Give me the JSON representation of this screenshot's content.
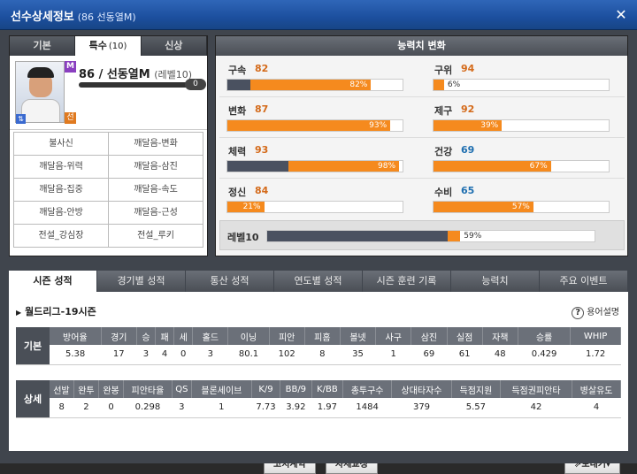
{
  "window": {
    "title": "선수상세정보",
    "subtitle": "(86 선동열M)",
    "close": "✕"
  },
  "left_tabs": [
    {
      "label": "기본",
      "count": ""
    },
    {
      "label": "특수",
      "count": "(10)"
    },
    {
      "label": "신상",
      "count": ""
    }
  ],
  "player": {
    "name": "86 / 선동열M",
    "level": "(레벨10)",
    "exp": "0",
    "badge_top": "M",
    "badge_bottom": "선",
    "photo_alt": ""
  },
  "skills": [
    "불사신",
    "깨달음-변화",
    "깨달음-위력",
    "깨달음-삼진",
    "깨달음-집중",
    "깨달음-속도",
    "깨달음-안방",
    "깨달음-근성",
    "전설_강심장",
    "전설_루키"
  ],
  "stats_header": "능력치 변화",
  "stats": [
    {
      "label": "구속",
      "value": "82",
      "pct": "82%",
      "base": 0.13,
      "fill": 0.82,
      "color": "#d46a1a"
    },
    {
      "label": "구위",
      "value": "94",
      "pct": "6%",
      "base": 0.0,
      "fill": 0.06,
      "color": "#d46a1a"
    },
    {
      "label": "변화",
      "value": "87",
      "pct": "93%",
      "base": 0.0,
      "fill": 0.93,
      "color": "#d46a1a"
    },
    {
      "label": "제구",
      "value": "92",
      "pct": "39%",
      "base": 0.0,
      "fill": 0.39,
      "color": "#d46a1a"
    },
    {
      "label": "체력",
      "value": "93",
      "pct": "98%",
      "base": 0.35,
      "fill": 0.98,
      "color": "#d46a1a"
    },
    {
      "label": "건강",
      "value": "69",
      "pct": "67%",
      "base": 0.0,
      "fill": 0.67,
      "color": "#1f6fb0"
    },
    {
      "label": "정신",
      "value": "84",
      "pct": "21%",
      "base": 0.0,
      "fill": 0.21,
      "color": "#d46a1a"
    },
    {
      "label": "수비",
      "value": "65",
      "pct": "57%",
      "base": 0.0,
      "fill": 0.57,
      "color": "#1f6fb0"
    }
  ],
  "level_bar": {
    "label": "레벨10",
    "pct": "59%",
    "base": 0.55,
    "fill": 0.59
  },
  "bottom_tabs": [
    "시즌 성적",
    "경기별 성적",
    "통산 성적",
    "연도별 성적",
    "시즌 훈련 기록",
    "능력치",
    "주요 이벤트"
  ],
  "season_label": "월드리그-19시즌",
  "help_label": "용어설명",
  "table_basic": {
    "rowhead": "기본",
    "headers": [
      "방어율",
      "경기",
      "승",
      "패",
      "세",
      "홀드",
      "이닝",
      "피안",
      "피홈",
      "볼넷",
      "사구",
      "삼진",
      "실점",
      "자책",
      "승률",
      "WHIP"
    ],
    "values": [
      "5.38",
      "17",
      "3",
      "4",
      "0",
      "3",
      "80.1",
      "102",
      "8",
      "35",
      "1",
      "69",
      "61",
      "48",
      "0.429",
      "1.72"
    ]
  },
  "table_detail": {
    "rowhead": "상세",
    "headers": [
      "선발",
      "완투",
      "완봉",
      "피안타율",
      "QS",
      "블론세이브",
      "K/9",
      "BB/9",
      "K/BB",
      "총투구수",
      "상대타자수",
      "득점지원",
      "득점권피안타",
      "병살유도"
    ],
    "values": [
      "8",
      "2",
      "0",
      "0.298",
      "3",
      "1",
      "7.73",
      "3.92",
      "1.97",
      "1484",
      "379",
      "5.57",
      "42",
      "4"
    ]
  },
  "buttons": {
    "contract": "코치계약",
    "calibrate": "자세교정",
    "send": "보내기"
  }
}
